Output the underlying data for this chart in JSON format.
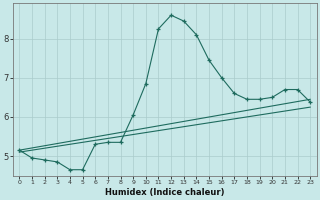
{
  "xlabel": "Humidex (Indice chaleur)",
  "background_color": "#c8e8e8",
  "grid_color": "#aacccc",
  "line_color": "#1e6b5e",
  "xlim": [
    -0.5,
    23.5
  ],
  "ylim": [
    4.5,
    8.9
  ],
  "xtick_labels": [
    "0",
    "1",
    "2",
    "3",
    "4",
    "5",
    "6",
    "7",
    "8",
    "9",
    "10",
    "11",
    "12",
    "13",
    "14",
    "15",
    "16",
    "17",
    "18",
    "19",
    "20",
    "21",
    "22",
    "23"
  ],
  "yticks": [
    5,
    6,
    7,
    8
  ],
  "curve1_x": [
    0,
    1,
    2,
    3,
    4,
    5,
    6,
    7,
    8,
    9,
    10,
    11,
    12,
    13,
    14,
    15,
    16,
    17,
    18,
    19,
    20,
    21,
    22,
    23
  ],
  "curve1_y": [
    5.15,
    4.95,
    4.9,
    4.85,
    4.65,
    4.65,
    5.3,
    5.35,
    5.35,
    6.05,
    6.85,
    8.25,
    8.6,
    8.45,
    8.1,
    7.45,
    7.0,
    6.6,
    6.45,
    6.45,
    6.5,
    6.7,
    6.7,
    6.38
  ],
  "curve2_x": [
    0,
    23
  ],
  "curve2_y": [
    5.1,
    6.25
  ],
  "curve3_x": [
    0,
    23
  ],
  "curve3_y": [
    5.15,
    6.45
  ]
}
